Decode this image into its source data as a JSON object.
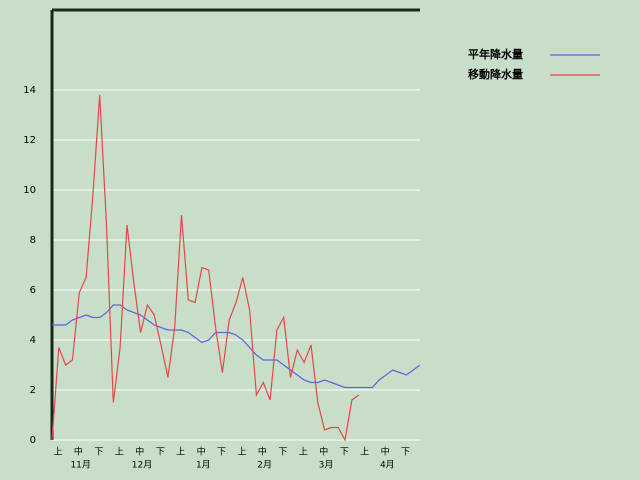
{
  "chart_data": {
    "type": "line",
    "categories": [
      "上",
      null,
      null,
      "中",
      null,
      null,
      "下",
      null,
      null,
      "上",
      null,
      null,
      "中",
      null,
      null,
      "下",
      null,
      null,
      "上",
      null,
      null,
      "中",
      null,
      null,
      "下",
      null,
      null,
      "上",
      null,
      null,
      "中",
      null,
      null,
      "下",
      null,
      null,
      "上",
      null,
      null,
      "中",
      null,
      null,
      "下",
      null,
      null,
      "上",
      null,
      null,
      "中",
      null,
      null,
      "下",
      null,
      null,
      null
    ],
    "months": [
      "11月",
      "12月",
      "1月",
      "2月",
      "3月",
      "4月"
    ],
    "series": [
      {
        "name": "平年降水量",
        "color": "#5a64e6",
        "values": [
          4.6,
          4.6,
          4.6,
          4.8,
          4.9,
          5.0,
          4.9,
          4.9,
          5.1,
          5.4,
          5.4,
          5.2,
          5.1,
          5.0,
          4.8,
          4.6,
          4.5,
          4.4,
          4.4,
          4.4,
          4.3,
          4.1,
          3.9,
          4.0,
          4.3,
          4.3,
          4.3,
          4.2,
          4.0,
          3.7,
          3.4,
          3.2,
          3.2,
          3.2,
          3.0,
          2.8,
          2.6,
          2.4,
          2.3,
          2.3,
          2.4,
          2.3,
          2.2,
          2.1,
          2.1,
          2.1,
          2.1,
          2.1,
          2.4,
          2.6,
          2.8,
          2.7,
          2.6,
          2.8,
          3.0
        ]
      },
      {
        "name": "移動降水量",
        "color": "#e64646",
        "values": [
          0,
          3.7,
          3.0,
          3.2,
          5.9,
          6.5,
          9.8,
          13.8,
          8.6,
          1.5,
          3.7,
          8.6,
          6.3,
          4.3,
          5.4,
          5.0,
          3.8,
          2.5,
          4.5,
          9.0,
          5.6,
          5.5,
          6.9,
          6.8,
          4.5,
          2.7,
          4.8,
          5.5,
          6.5,
          5.2,
          1.8,
          2.3,
          1.6,
          4.4,
          4.9,
          2.5,
          3.6,
          3.1,
          3.8,
          1.5,
          0.4,
          0.5,
          0.5,
          0.0,
          1.6,
          1.8,
          null,
          null,
          null,
          null,
          null,
          null,
          null,
          null,
          null
        ]
      }
    ],
    "ylim": [
      0,
      17.2
    ],
    "yticks": [
      0,
      2,
      4,
      6,
      8,
      10,
      12,
      14
    ],
    "grid": true,
    "legend": "top-right"
  }
}
